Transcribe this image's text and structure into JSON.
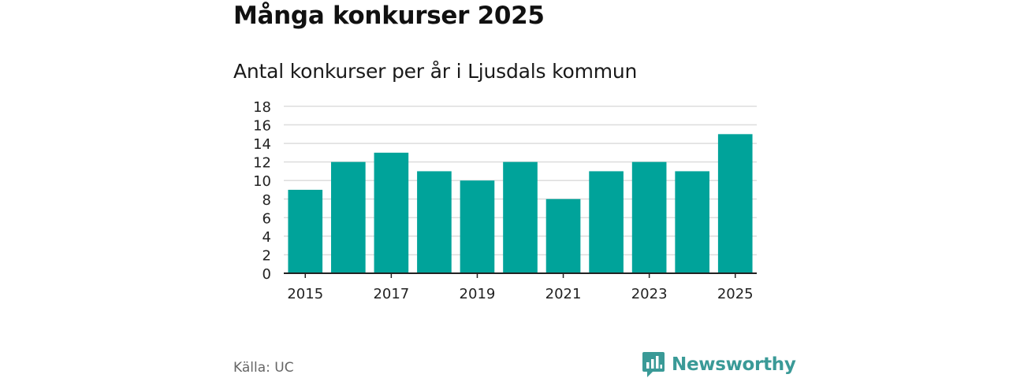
{
  "header": {
    "title": "Många konkurser 2025",
    "subtitle": "Antal konkurser per år i Ljusdals kommun"
  },
  "footer": {
    "source": "Källa: UC",
    "brand": "Newsworthy"
  },
  "colors": {
    "bar": "#00a39a",
    "grid": "#dddddd",
    "axis": "#222222",
    "brand": "#3a9a97"
  },
  "chart_data": {
    "type": "bar",
    "title": "Antal konkurser per år i Ljusdals kommun",
    "xlabel": "",
    "ylabel": "",
    "categories": [
      "2015",
      "2016",
      "2017",
      "2018",
      "2019",
      "2020",
      "2021",
      "2022",
      "2023",
      "2024",
      "2025"
    ],
    "values": [
      9,
      12,
      13,
      11,
      10,
      12,
      8,
      11,
      12,
      11,
      15
    ],
    "x_tick_labels": [
      "2015",
      "2017",
      "2019",
      "2021",
      "2023",
      "2025"
    ],
    "y_ticks": [
      0,
      2,
      4,
      6,
      8,
      10,
      12,
      14,
      16,
      18
    ],
    "ylim": [
      0,
      18
    ],
    "grid": true,
    "legend": "none"
  }
}
